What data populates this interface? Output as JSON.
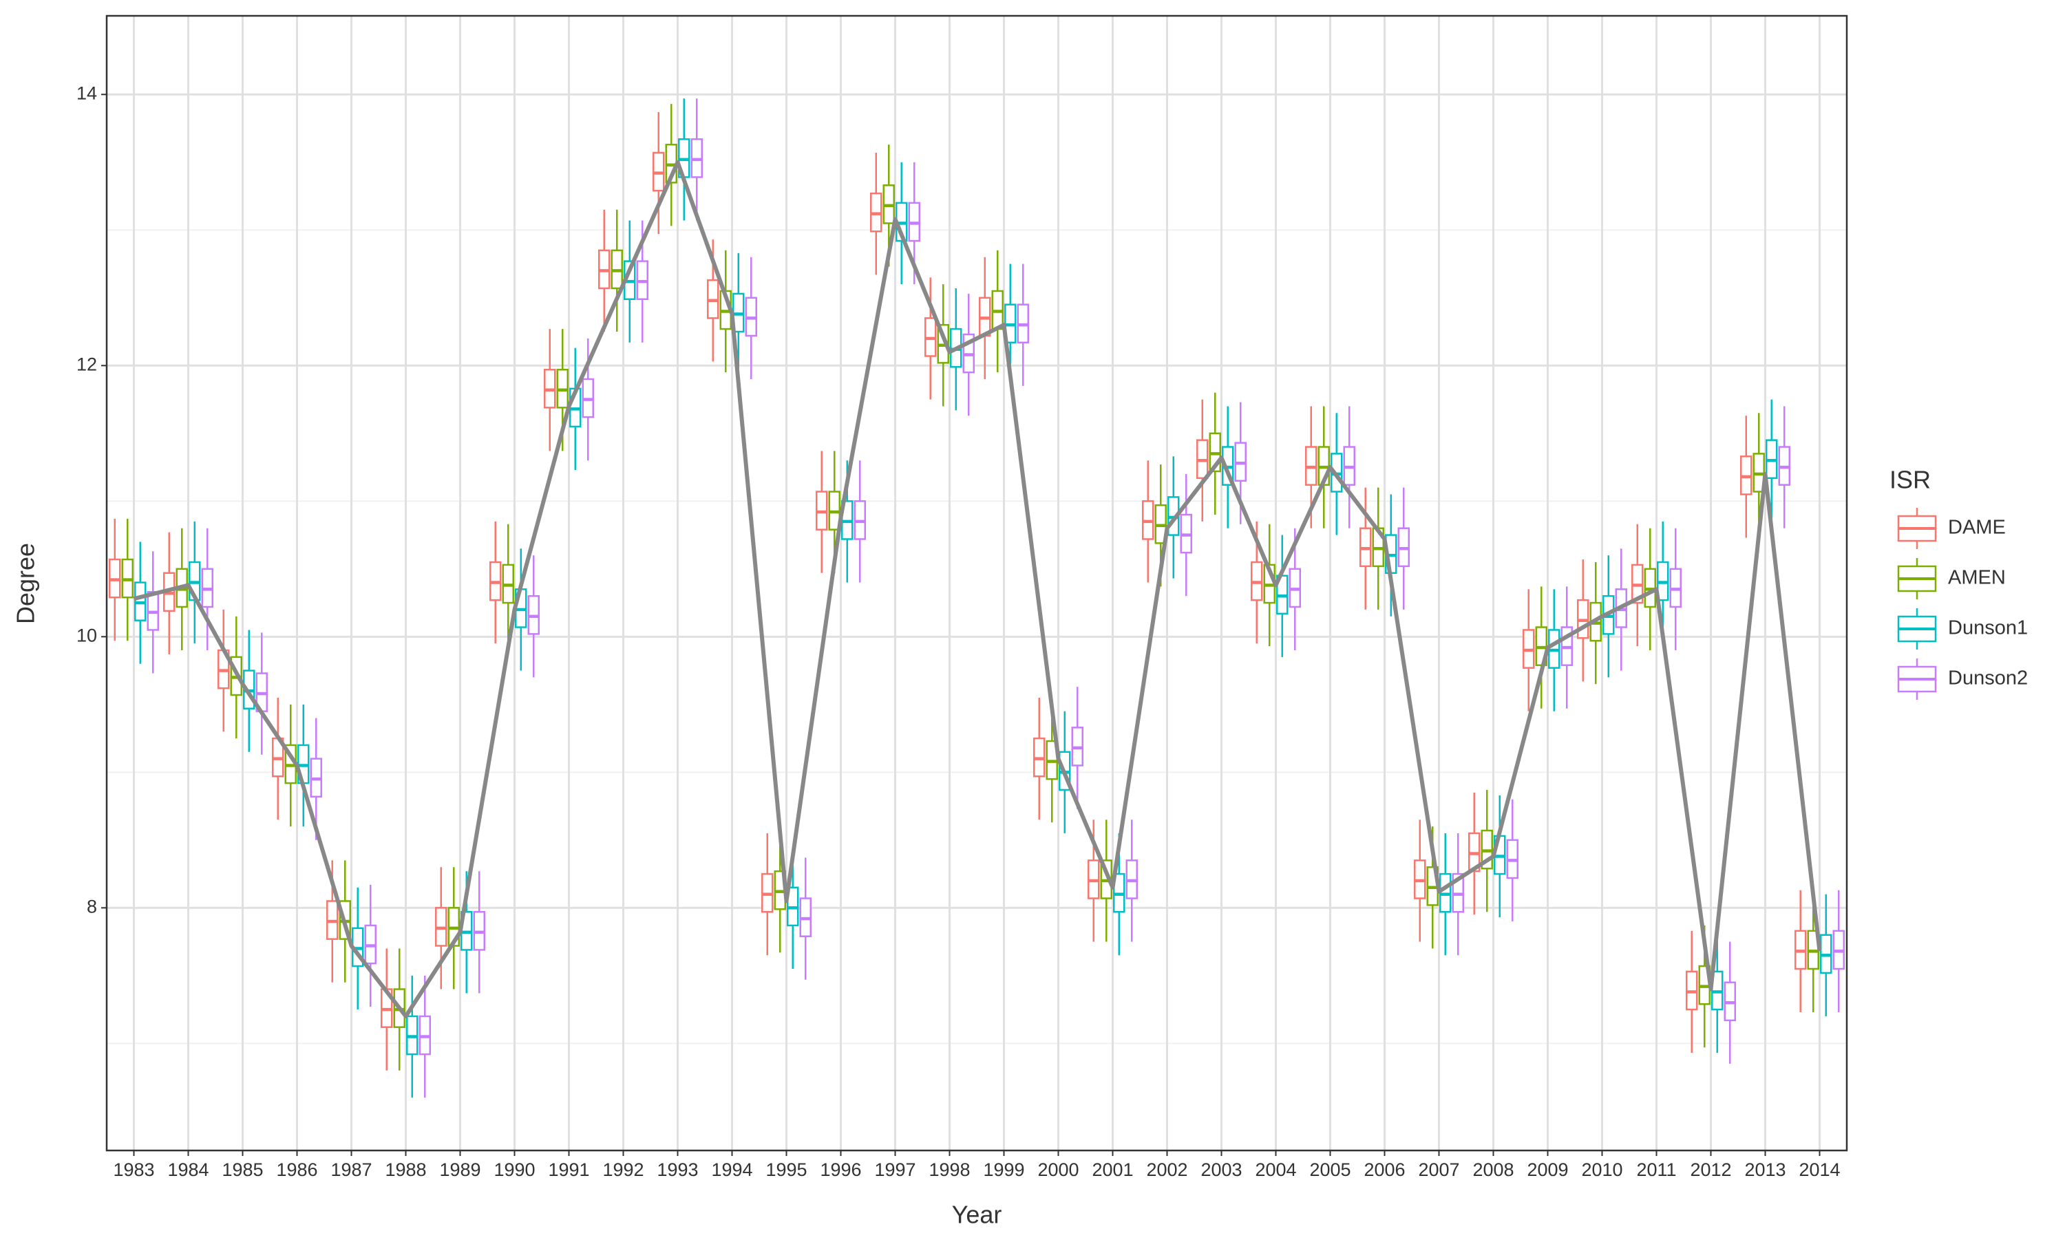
{
  "chart_data": {
    "type": "boxplot",
    "x_label": "Year",
    "y_label": "Degree",
    "legend_title": "ISR",
    "categories": [
      "1983",
      "1984",
      "1985",
      "1986",
      "1987",
      "1988",
      "1989",
      "1990",
      "1991",
      "1992",
      "1993",
      "1994",
      "1995",
      "1996",
      "1997",
      "1998",
      "1999",
      "2000",
      "2001",
      "2002",
      "2003",
      "2004",
      "2005",
      "2006",
      "2007",
      "2008",
      "2009",
      "2010",
      "2011",
      "2012",
      "2013",
      "2014"
    ],
    "ylim": [
      6.21,
      14.58
    ],
    "yticks": [
      8,
      10,
      12,
      14
    ],
    "minor_yticks": [
      7,
      9,
      11,
      13
    ],
    "grid": true,
    "legend_position": "right",
    "series": [
      {
        "name": "DAME",
        "color": "#F8766D",
        "whisker_low": [
          9.97,
          9.87,
          9.3,
          8.65,
          7.45,
          6.8,
          7.4,
          9.95,
          11.37,
          12.25,
          12.97,
          12.03,
          7.65,
          10.47,
          12.67,
          11.75,
          11.9,
          8.65,
          7.75,
          10.4,
          10.85,
          9.95,
          10.8,
          10.2,
          7.75,
          7.95,
          9.45,
          9.67,
          9.93,
          6.93,
          10.73,
          7.23
        ],
        "q1": [
          10.29,
          10.19,
          9.62,
          8.97,
          7.77,
          7.12,
          7.72,
          10.27,
          11.69,
          12.57,
          13.29,
          12.35,
          7.97,
          10.79,
          12.99,
          12.07,
          12.22,
          8.97,
          8.07,
          10.72,
          11.17,
          10.27,
          11.12,
          10.52,
          8.07,
          8.27,
          9.77,
          9.99,
          10.25,
          7.25,
          11.05,
          7.55
        ],
        "median": [
          10.42,
          10.32,
          9.75,
          9.1,
          7.9,
          7.25,
          7.85,
          10.4,
          11.82,
          12.7,
          13.42,
          12.48,
          8.1,
          10.92,
          13.12,
          12.2,
          12.35,
          9.1,
          8.2,
          10.85,
          11.3,
          10.4,
          11.25,
          10.65,
          8.2,
          8.4,
          9.9,
          10.12,
          10.38,
          7.38,
          11.18,
          7.68
        ],
        "q3": [
          10.57,
          10.47,
          9.9,
          9.25,
          8.05,
          7.4,
          8.0,
          10.55,
          11.97,
          12.85,
          13.57,
          12.63,
          8.25,
          11.07,
          13.27,
          12.35,
          12.5,
          9.25,
          8.35,
          11.0,
          11.45,
          10.55,
          11.4,
          10.8,
          8.35,
          8.55,
          10.05,
          10.27,
          10.53,
          7.53,
          11.33,
          7.83
        ],
        "whisker_high": [
          10.87,
          10.77,
          10.2,
          9.55,
          8.35,
          7.7,
          8.3,
          10.85,
          12.27,
          13.15,
          13.87,
          12.93,
          8.55,
          11.37,
          13.57,
          12.65,
          12.8,
          9.55,
          8.65,
          11.3,
          11.75,
          10.85,
          11.7,
          11.1,
          8.65,
          8.85,
          10.35,
          10.57,
          10.83,
          7.83,
          11.63,
          8.13
        ]
      },
      {
        "name": "AMEN",
        "color": "#7CAE00",
        "whisker_low": [
          9.97,
          9.9,
          9.25,
          8.6,
          7.45,
          6.8,
          7.4,
          9.93,
          11.37,
          12.25,
          13.03,
          11.95,
          7.67,
          10.47,
          12.73,
          11.7,
          11.95,
          8.63,
          7.75,
          10.37,
          10.9,
          9.93,
          10.8,
          10.2,
          7.7,
          7.97,
          9.47,
          9.65,
          9.9,
          6.97,
          10.75,
          7.23
        ],
        "q1": [
          10.29,
          10.22,
          9.57,
          8.92,
          7.77,
          7.12,
          7.72,
          10.25,
          11.69,
          12.57,
          13.35,
          12.27,
          7.99,
          10.79,
          13.05,
          12.02,
          12.27,
          8.95,
          8.07,
          10.69,
          11.22,
          10.25,
          11.12,
          10.52,
          8.02,
          8.29,
          9.79,
          9.97,
          10.22,
          7.29,
          11.07,
          7.55
        ],
        "median": [
          10.42,
          10.35,
          9.7,
          9.05,
          7.9,
          7.25,
          7.85,
          10.38,
          11.82,
          12.7,
          13.48,
          12.4,
          8.12,
          10.92,
          13.18,
          12.15,
          12.4,
          9.08,
          8.2,
          10.82,
          11.35,
          10.38,
          11.25,
          10.65,
          8.15,
          8.42,
          9.92,
          10.1,
          10.35,
          7.42,
          11.2,
          7.68
        ],
        "q3": [
          10.57,
          10.5,
          9.85,
          9.2,
          8.05,
          7.4,
          8.0,
          10.53,
          11.97,
          12.85,
          13.63,
          12.55,
          8.27,
          11.07,
          13.33,
          12.3,
          12.55,
          9.23,
          8.35,
          10.97,
          11.5,
          10.53,
          11.4,
          10.8,
          8.3,
          8.57,
          10.07,
          10.25,
          10.5,
          7.57,
          11.35,
          7.83
        ],
        "whisker_high": [
          10.87,
          10.8,
          10.15,
          9.5,
          8.35,
          7.7,
          8.3,
          10.83,
          12.27,
          13.15,
          13.93,
          12.85,
          8.57,
          11.37,
          13.63,
          12.6,
          12.85,
          9.53,
          8.65,
          11.27,
          11.8,
          10.83,
          11.7,
          11.1,
          8.6,
          8.87,
          10.37,
          10.55,
          10.8,
          7.87,
          11.65,
          8.13
        ]
      },
      {
        "name": "Dunson1",
        "color": "#00BFC4",
        "whisker_low": [
          9.8,
          9.95,
          9.15,
          8.6,
          7.25,
          6.6,
          7.37,
          9.75,
          11.23,
          12.17,
          13.07,
          11.93,
          7.55,
          10.4,
          12.6,
          11.67,
          11.85,
          8.55,
          7.65,
          10.43,
          10.8,
          9.85,
          10.75,
          10.15,
          7.65,
          7.93,
          9.45,
          9.7,
          9.95,
          6.93,
          10.85,
          7.2
        ],
        "q1": [
          10.12,
          10.27,
          9.47,
          8.92,
          7.57,
          6.92,
          7.69,
          10.07,
          11.55,
          12.49,
          13.39,
          12.25,
          7.87,
          10.72,
          12.92,
          11.99,
          12.17,
          8.87,
          7.97,
          10.75,
          11.12,
          10.17,
          11.07,
          10.47,
          7.97,
          8.25,
          9.77,
          10.02,
          10.27,
          7.25,
          11.17,
          7.52
        ],
        "median": [
          10.25,
          10.4,
          9.6,
          9.05,
          7.7,
          7.05,
          7.82,
          10.2,
          11.68,
          12.62,
          13.52,
          12.38,
          8.0,
          10.85,
          13.05,
          12.12,
          12.3,
          9.0,
          8.1,
          10.88,
          11.25,
          10.3,
          11.2,
          10.6,
          8.1,
          8.38,
          9.9,
          10.15,
          10.4,
          7.38,
          11.3,
          7.65
        ],
        "q3": [
          10.4,
          10.55,
          9.75,
          9.2,
          7.85,
          7.2,
          7.97,
          10.35,
          11.83,
          12.77,
          13.67,
          12.53,
          8.15,
          11.0,
          13.2,
          12.27,
          12.45,
          9.15,
          8.25,
          11.03,
          11.4,
          10.45,
          11.35,
          10.75,
          8.25,
          8.53,
          10.05,
          10.3,
          10.55,
          7.53,
          11.45,
          7.8
        ],
        "whisker_high": [
          10.7,
          10.85,
          10.05,
          9.5,
          8.15,
          7.5,
          8.27,
          10.65,
          12.13,
          13.07,
          13.97,
          12.83,
          8.45,
          11.3,
          13.5,
          12.57,
          12.75,
          9.45,
          8.55,
          11.33,
          11.7,
          10.75,
          11.65,
          11.05,
          8.55,
          8.83,
          10.35,
          10.6,
          10.85,
          7.83,
          11.75,
          8.1
        ]
      },
      {
        "name": "Dunson2",
        "color": "#C77CFF",
        "whisker_low": [
          9.73,
          9.9,
          9.13,
          8.5,
          7.27,
          6.6,
          7.37,
          9.7,
          11.3,
          12.17,
          13.07,
          11.9,
          7.47,
          10.4,
          12.6,
          11.63,
          11.85,
          8.73,
          7.75,
          10.3,
          10.83,
          9.9,
          10.8,
          10.2,
          7.65,
          7.9,
          9.47,
          9.75,
          9.9,
          6.85,
          10.8,
          7.23
        ],
        "q1": [
          10.05,
          10.22,
          9.45,
          8.82,
          7.59,
          6.92,
          7.69,
          10.02,
          11.62,
          12.49,
          13.39,
          12.22,
          7.79,
          10.72,
          12.92,
          11.95,
          12.17,
          9.05,
          8.07,
          10.62,
          11.15,
          10.22,
          11.12,
          10.52,
          7.97,
          8.22,
          9.79,
          10.07,
          10.22,
          7.17,
          11.12,
          7.55
        ],
        "median": [
          10.18,
          10.35,
          9.58,
          8.95,
          7.72,
          7.05,
          7.82,
          10.15,
          11.75,
          12.62,
          13.52,
          12.35,
          7.92,
          10.85,
          13.05,
          12.08,
          12.3,
          9.18,
          8.2,
          10.75,
          11.28,
          10.35,
          11.25,
          10.65,
          8.1,
          8.35,
          9.92,
          10.2,
          10.35,
          7.3,
          11.25,
          7.68
        ],
        "q3": [
          10.33,
          10.5,
          9.73,
          9.1,
          7.87,
          7.2,
          7.97,
          10.3,
          11.9,
          12.77,
          13.67,
          12.5,
          8.07,
          11.0,
          13.2,
          12.23,
          12.45,
          9.33,
          8.35,
          10.9,
          11.43,
          10.5,
          11.4,
          10.8,
          8.25,
          8.5,
          10.07,
          10.35,
          10.5,
          7.45,
          11.4,
          7.83
        ],
        "whisker_high": [
          10.63,
          10.8,
          10.03,
          9.4,
          8.17,
          7.5,
          8.27,
          10.6,
          12.2,
          13.07,
          13.97,
          12.8,
          8.37,
          11.3,
          13.5,
          12.53,
          12.75,
          9.63,
          8.65,
          11.2,
          11.73,
          10.8,
          11.7,
          11.1,
          8.55,
          8.8,
          10.37,
          10.65,
          10.8,
          7.75,
          11.7,
          8.13
        ]
      }
    ],
    "reference": {
      "color": "#888888",
      "values": [
        10.28,
        10.38,
        9.65,
        9.05,
        7.72,
        7.2,
        7.82,
        10.2,
        11.7,
        12.6,
        13.5,
        12.38,
        8.05,
        10.88,
        13.08,
        12.1,
        12.3,
        9.1,
        8.15,
        10.8,
        11.32,
        10.38,
        11.25,
        10.72,
        8.12,
        8.38,
        9.92,
        10.15,
        10.35,
        7.4,
        11.2,
        7.68
      ]
    }
  }
}
